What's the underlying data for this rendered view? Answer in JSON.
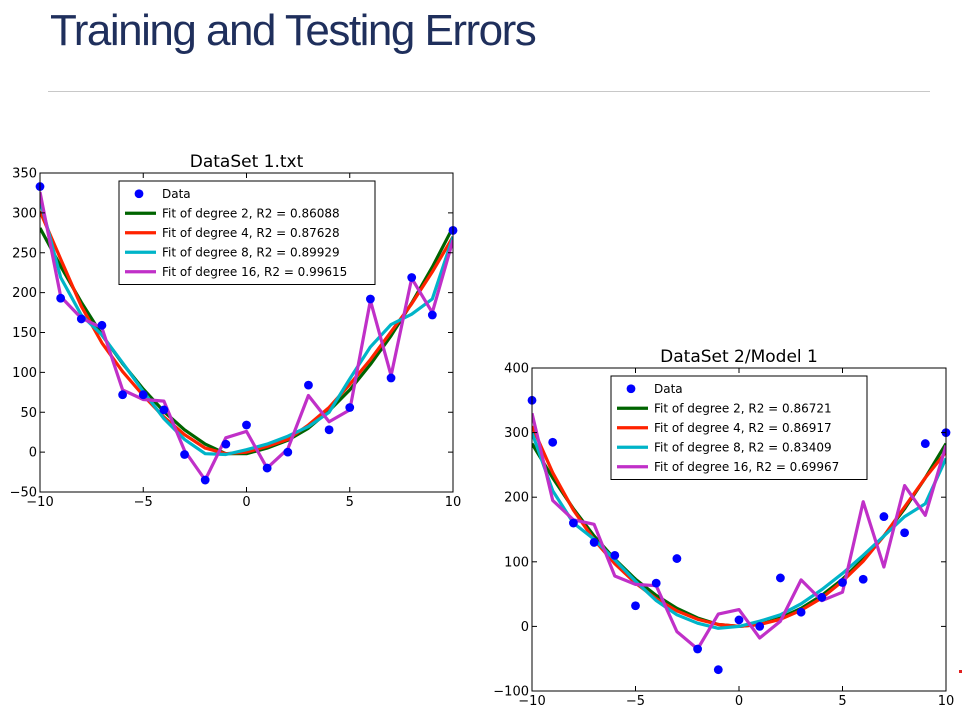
{
  "slide": {
    "title": "Training and Testing Errors"
  },
  "chart_data": [
    {
      "type": "line",
      "title": "DataSet 1.txt",
      "xlabel": "",
      "ylabel": "",
      "xlim": [
        -10,
        10
      ],
      "ylim": [
        -50,
        350
      ],
      "xticks": [
        -10,
        -5,
        0,
        5,
        10
      ],
      "yticks": [
        -50,
        0,
        50,
        100,
        150,
        200,
        250,
        300,
        350
      ],
      "legend_placement": "upper-center",
      "grid": false,
      "points": {
        "name": "Data",
        "color": "#0000ff",
        "x": [
          -10,
          -9,
          -8,
          -7,
          -6,
          -5,
          -4,
          -3,
          -2,
          -1,
          0,
          1,
          2,
          3,
          4,
          5,
          6,
          7,
          8,
          9,
          10
        ],
        "y": [
          333,
          193,
          167,
          159,
          72,
          72,
          53,
          -3,
          -35,
          10,
          34,
          -20,
          0,
          84,
          28,
          56,
          192,
          93,
          219,
          172,
          278
        ]
      },
      "series": [
        {
          "name": "Fit of degree 2, R2 = 0.86088",
          "color": "#006400",
          "x": [
            -10,
            -9,
            -8,
            -7,
            -6,
            -5,
            -4,
            -3,
            -2,
            -1,
            0,
            1,
            2,
            3,
            4,
            5,
            6,
            7,
            8,
            9,
            10
          ],
          "y": [
            281,
            233,
            188,
            147,
            111,
            79,
            51,
            28,
            10,
            -2,
            -2,
            5,
            15,
            30,
            52,
            78,
            110,
            146,
            187,
            232,
            282
          ]
        },
        {
          "name": "Fit of degree 4, R2 = 0.87628",
          "color": "#ff2200",
          "x": [
            -10,
            -9,
            -8,
            -7,
            -6,
            -5,
            -4,
            -3,
            -2,
            -1,
            0,
            1,
            2,
            3,
            4,
            5,
            6,
            7,
            8,
            9,
            10
          ],
          "y": [
            302,
            242,
            183,
            137,
            101,
            71,
            44,
            22,
            5,
            -2,
            0,
            7,
            16,
            34,
            56,
            85,
            116,
            151,
            186,
            226,
            270
          ]
        },
        {
          "name": "Fit of degree 8, R2 = 0.89929",
          "color": "#00b4c8",
          "x": [
            -10,
            -9,
            -8,
            -7,
            -6,
            -5,
            -4,
            -3,
            -2,
            -1,
            0,
            1,
            2,
            3,
            4,
            5,
            6,
            7,
            8,
            9,
            10
          ],
          "y": [
            316,
            219,
            172,
            147,
            112,
            76,
            42,
            16,
            -2,
            -3,
            3,
            10,
            20,
            32,
            50,
            92,
            132,
            160,
            173,
            192,
            270
          ]
        },
        {
          "name": "Fit of degree 16, R2 = 0.99615",
          "color": "#c030c8",
          "x": [
            -10,
            -9,
            -8,
            -7,
            -6,
            -5,
            -4,
            -3,
            -2,
            -1,
            0,
            1,
            2,
            3,
            4,
            5,
            6,
            7,
            8,
            9,
            10
          ],
          "y": [
            326,
            195,
            168,
            156,
            78,
            66,
            64,
            2,
            -35,
            18,
            26,
            -20,
            4,
            71,
            38,
            53,
            190,
            96,
            218,
            175,
            266
          ]
        }
      ]
    },
    {
      "type": "line",
      "title": "DataSet 2/Model 1",
      "xlabel": "",
      "ylabel": "",
      "xlim": [
        -10,
        10
      ],
      "ylim": [
        -100,
        400
      ],
      "xticks": [
        -10,
        -5,
        0,
        5,
        10
      ],
      "yticks": [
        -100,
        0,
        100,
        200,
        300,
        400
      ],
      "legend_placement": "upper-center",
      "grid": false,
      "points": {
        "name": "Data",
        "color": "#0000ff",
        "x": [
          -10,
          -9,
          -8,
          -7,
          -6,
          -5,
          -4,
          -3,
          -2,
          -1,
          0,
          1,
          2,
          3,
          4,
          5,
          6,
          7,
          8,
          9,
          10
        ],
        "y": [
          350,
          285,
          160,
          130,
          110,
          32,
          67,
          105,
          -35,
          -67,
          10,
          0,
          75,
          22,
          45,
          68,
          73,
          170,
          145,
          283,
          300
        ]
      },
      "series": [
        {
          "name": "Fit of degree 2, R2 = 0.86721",
          "color": "#006400",
          "x": [
            -10,
            -9,
            -8,
            -7,
            -6,
            -5,
            -4,
            -3,
            -2,
            -1,
            0,
            1,
            2,
            3,
            4,
            5,
            6,
            7,
            8,
            9,
            10
          ],
          "y": [
            283,
            230,
            182,
            140,
            104,
            73,
            48,
            28,
            13,
            3,
            0,
            3,
            13,
            28,
            48,
            73,
            104,
            140,
            182,
            230,
            283
          ]
        },
        {
          "name": "Fit of degree 4, R2 = 0.86917",
          "color": "#ff2200",
          "x": [
            -10,
            -9,
            -8,
            -7,
            -6,
            -5,
            -4,
            -3,
            -2,
            -1,
            0,
            1,
            2,
            3,
            4,
            5,
            6,
            7,
            8,
            9,
            10
          ],
          "y": [
            310,
            238,
            180,
            134,
            97,
            67,
            43,
            24,
            11,
            3,
            0,
            3,
            11,
            25,
            44,
            70,
            101,
            140,
            185,
            230,
            270
          ]
        },
        {
          "name": "Fit of degree 8, R2 = 0.83409",
          "color": "#00b4c8",
          "x": [
            -10,
            -9,
            -8,
            -7,
            -6,
            -5,
            -4,
            -3,
            -2,
            -1,
            0,
            1,
            2,
            3,
            4,
            5,
            6,
            7,
            8,
            9,
            10
          ],
          "y": [
            300,
            210,
            160,
            135,
            103,
            70,
            40,
            18,
            5,
            -3,
            0,
            8,
            18,
            35,
            57,
            82,
            110,
            140,
            170,
            190,
            260
          ]
        },
        {
          "name": "Fit of degree 16, R2 = 0.69967",
          "color": "#c030c8",
          "x": [
            -10,
            -9,
            -8,
            -7,
            -6,
            -5,
            -4,
            -3,
            -2,
            -1,
            0,
            1,
            2,
            3,
            4,
            5,
            6,
            7,
            8,
            9,
            10
          ],
          "y": [
            330,
            195,
            165,
            158,
            78,
            65,
            63,
            -8,
            -35,
            19,
            26,
            -18,
            8,
            72,
            40,
            53,
            193,
            92,
            218,
            172,
            280
          ]
        }
      ]
    }
  ]
}
